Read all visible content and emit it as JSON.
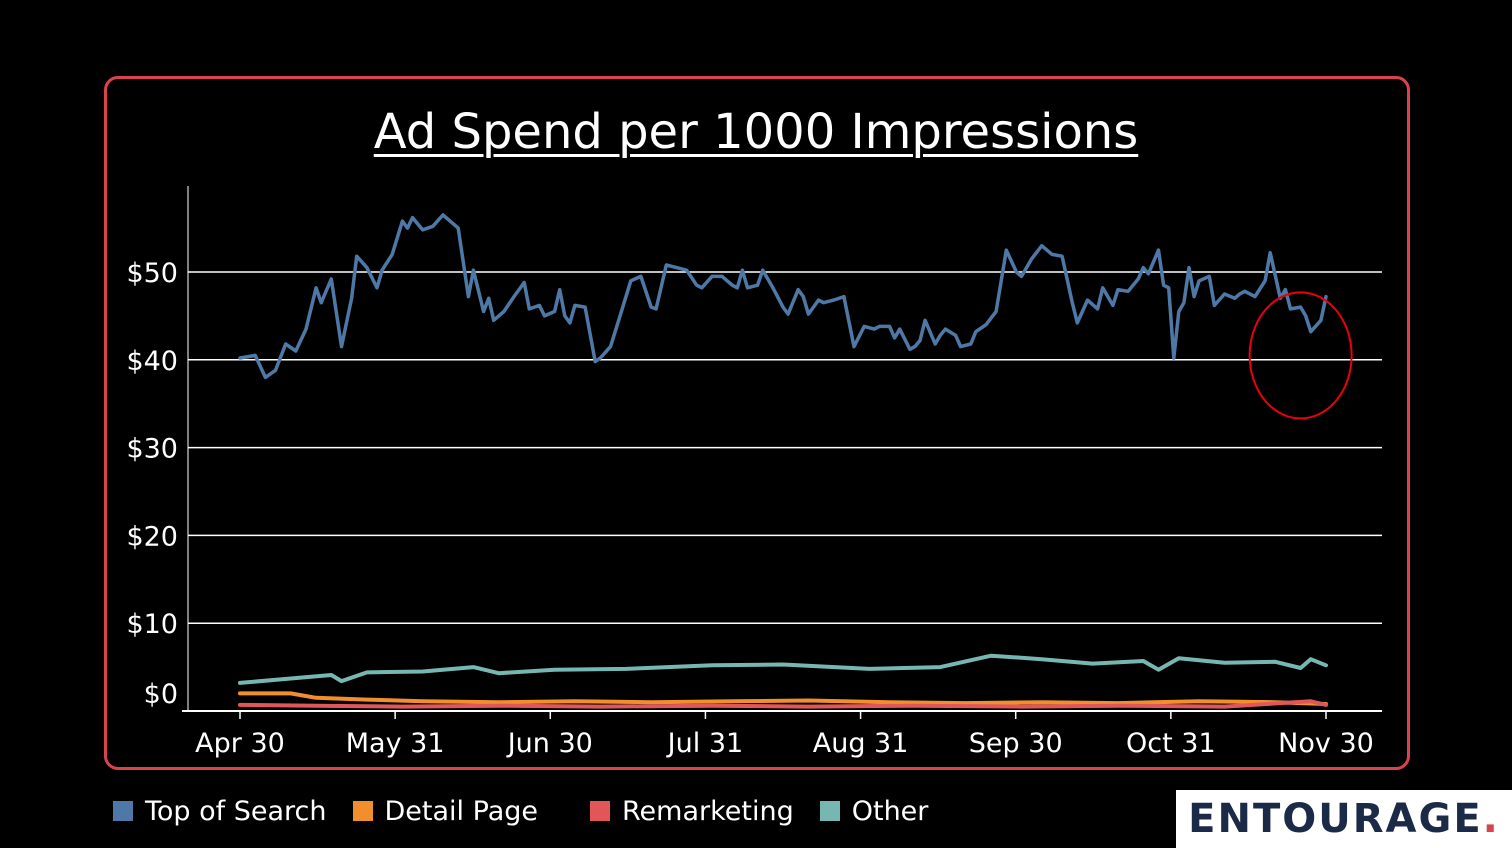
{
  "chart_data": {
    "type": "line",
    "title": "Ad Spend per 1000 Impressions",
    "xlabel": "",
    "ylabel": "",
    "x_tick_labels": [
      "Apr 30",
      "May 31",
      "Jun 30",
      "Jul 31",
      "Aug 31",
      "Sep 30",
      "Oct 31",
      "Nov 30"
    ],
    "y_tick_labels": [
      "$0",
      "$10",
      "$20",
      "$30",
      "$40",
      "$50"
    ],
    "y_ticks": [
      0,
      10,
      20,
      30,
      40,
      50
    ],
    "ylim": [
      0,
      60
    ],
    "x_range": [
      "2024-04-30",
      "2024-11-30"
    ],
    "grid": true,
    "legend_position": "bottom-left",
    "series": [
      {
        "name": "Top of Search",
        "color": "#4e79a7",
        "points": [
          [
            "2024-04-30",
            40.2
          ],
          [
            "2024-05-03",
            40.5
          ],
          [
            "2024-05-05",
            38.0
          ],
          [
            "2024-05-07",
            38.8
          ],
          [
            "2024-05-09",
            41.8
          ],
          [
            "2024-05-11",
            41.0
          ],
          [
            "2024-05-13",
            43.5
          ],
          [
            "2024-05-15",
            48.2
          ],
          [
            "2024-05-16",
            46.5
          ],
          [
            "2024-05-18",
            49.2
          ],
          [
            "2024-05-20",
            41.5
          ],
          [
            "2024-05-22",
            47.0
          ],
          [
            "2024-05-23",
            51.8
          ],
          [
            "2024-05-25",
            50.5
          ],
          [
            "2024-05-27",
            48.2
          ],
          [
            "2024-05-28",
            50.2
          ],
          [
            "2024-05-30",
            52.0
          ],
          [
            "2024-06-01",
            55.8
          ],
          [
            "2024-06-02",
            55.0
          ],
          [
            "2024-06-03",
            56.2
          ],
          [
            "2024-06-05",
            54.8
          ],
          [
            "2024-06-07",
            55.2
          ],
          [
            "2024-06-09",
            56.5
          ],
          [
            "2024-06-12",
            55.0
          ],
          [
            "2024-06-14",
            47.2
          ],
          [
            "2024-06-15",
            50.2
          ],
          [
            "2024-06-17",
            45.5
          ],
          [
            "2024-06-18",
            47.0
          ],
          [
            "2024-06-19",
            44.5
          ],
          [
            "2024-06-21",
            45.5
          ],
          [
            "2024-06-23",
            47.2
          ],
          [
            "2024-06-25",
            48.8
          ],
          [
            "2024-06-26",
            45.8
          ],
          [
            "2024-06-28",
            46.2
          ],
          [
            "2024-06-29",
            45.0
          ],
          [
            "2024-07-01",
            45.5
          ],
          [
            "2024-07-02",
            48.0
          ],
          [
            "2024-07-03",
            45.0
          ],
          [
            "2024-07-04",
            44.2
          ],
          [
            "2024-07-05",
            46.2
          ],
          [
            "2024-07-07",
            46.0
          ],
          [
            "2024-07-09",
            39.8
          ],
          [
            "2024-07-10",
            40.2
          ],
          [
            "2024-07-12",
            41.5
          ],
          [
            "2024-07-14",
            45.2
          ],
          [
            "2024-07-16",
            49.0
          ],
          [
            "2024-07-18",
            49.5
          ],
          [
            "2024-07-20",
            46.0
          ],
          [
            "2024-07-21",
            45.8
          ],
          [
            "2024-07-23",
            50.8
          ],
          [
            "2024-07-25",
            50.5
          ],
          [
            "2024-07-27",
            50.2
          ],
          [
            "2024-07-29",
            48.5
          ],
          [
            "2024-07-30",
            48.2
          ],
          [
            "2024-08-01",
            49.5
          ],
          [
            "2024-08-03",
            49.5
          ],
          [
            "2024-08-05",
            48.5
          ],
          [
            "2024-08-06",
            48.2
          ],
          [
            "2024-08-07",
            50.2
          ],
          [
            "2024-08-08",
            48.2
          ],
          [
            "2024-08-10",
            48.5
          ],
          [
            "2024-08-11",
            50.2
          ],
          [
            "2024-08-13",
            48.2
          ],
          [
            "2024-08-15",
            46.0
          ],
          [
            "2024-08-16",
            45.2
          ],
          [
            "2024-08-18",
            48.0
          ],
          [
            "2024-08-19",
            47.2
          ],
          [
            "2024-08-20",
            45.2
          ],
          [
            "2024-08-22",
            46.8
          ],
          [
            "2024-08-23",
            46.5
          ],
          [
            "2024-08-25",
            46.8
          ],
          [
            "2024-08-27",
            47.2
          ],
          [
            "2024-08-29",
            41.5
          ],
          [
            "2024-08-31",
            43.8
          ],
          [
            "2024-09-02",
            43.5
          ],
          [
            "2024-09-03",
            43.8
          ],
          [
            "2024-09-05",
            43.8
          ],
          [
            "2024-09-06",
            42.5
          ],
          [
            "2024-09-07",
            43.5
          ],
          [
            "2024-09-09",
            41.2
          ],
          [
            "2024-09-10",
            41.5
          ],
          [
            "2024-09-11",
            42.2
          ],
          [
            "2024-09-12",
            44.5
          ],
          [
            "2024-09-14",
            41.8
          ],
          [
            "2024-09-15",
            42.8
          ],
          [
            "2024-09-16",
            43.5
          ],
          [
            "2024-09-18",
            42.8
          ],
          [
            "2024-09-19",
            41.5
          ],
          [
            "2024-09-21",
            41.8
          ],
          [
            "2024-09-22",
            43.2
          ],
          [
            "2024-09-24",
            44.0
          ],
          [
            "2024-09-26",
            45.5
          ],
          [
            "2024-09-28",
            52.5
          ],
          [
            "2024-09-30",
            50.0
          ],
          [
            "2024-10-01",
            49.5
          ],
          [
            "2024-10-03",
            51.5
          ],
          [
            "2024-10-05",
            53.0
          ],
          [
            "2024-10-07",
            52.0
          ],
          [
            "2024-10-09",
            51.8
          ],
          [
            "2024-10-11",
            46.5
          ],
          [
            "2024-10-12",
            44.2
          ],
          [
            "2024-10-14",
            46.8
          ],
          [
            "2024-10-16",
            45.8
          ],
          [
            "2024-10-17",
            48.2
          ],
          [
            "2024-10-19",
            46.2
          ],
          [
            "2024-10-20",
            48.0
          ],
          [
            "2024-10-22",
            47.8
          ],
          [
            "2024-10-24",
            49.2
          ],
          [
            "2024-10-25",
            50.5
          ],
          [
            "2024-10-26",
            49.8
          ],
          [
            "2024-10-28",
            52.5
          ],
          [
            "2024-10-29",
            48.5
          ],
          [
            "2024-10-30",
            48.2
          ],
          [
            "2024-10-31",
            40.2
          ],
          [
            "2024-11-01",
            45.5
          ],
          [
            "2024-11-02",
            46.5
          ],
          [
            "2024-11-03",
            50.5
          ],
          [
            "2024-11-04",
            47.2
          ],
          [
            "2024-11-05",
            49.0
          ],
          [
            "2024-11-07",
            49.5
          ],
          [
            "2024-11-08",
            46.2
          ],
          [
            "2024-11-10",
            47.5
          ],
          [
            "2024-11-12",
            47.0
          ],
          [
            "2024-11-13",
            47.5
          ],
          [
            "2024-11-14",
            47.8
          ],
          [
            "2024-11-16",
            47.2
          ],
          [
            "2024-11-18",
            49.0
          ],
          [
            "2024-11-19",
            52.2
          ],
          [
            "2024-11-21",
            47.0
          ],
          [
            "2024-11-22",
            48.0
          ],
          [
            "2024-11-23",
            45.8
          ],
          [
            "2024-11-25",
            46.0
          ],
          [
            "2024-11-26",
            45.0
          ],
          [
            "2024-11-27",
            43.2
          ],
          [
            "2024-11-29",
            44.5
          ],
          [
            "2024-11-30",
            47.2
          ]
        ]
      },
      {
        "name": "Detail Page",
        "color": "#f28e2b",
        "points": [
          [
            "2024-04-30",
            2.0
          ],
          [
            "2024-05-10",
            2.0
          ],
          [
            "2024-05-15",
            1.5
          ],
          [
            "2024-05-25",
            1.3
          ],
          [
            "2024-06-05",
            1.1
          ],
          [
            "2024-06-20",
            1.0
          ],
          [
            "2024-07-05",
            1.1
          ],
          [
            "2024-07-20",
            1.0
          ],
          [
            "2024-08-05",
            1.1
          ],
          [
            "2024-08-20",
            1.2
          ],
          [
            "2024-09-05",
            1.0
          ],
          [
            "2024-09-20",
            0.9
          ],
          [
            "2024-10-05",
            1.0
          ],
          [
            "2024-10-20",
            0.9
          ],
          [
            "2024-11-05",
            1.1
          ],
          [
            "2024-11-20",
            1.0
          ],
          [
            "2024-11-30",
            0.8
          ]
        ]
      },
      {
        "name": "Remarketing",
        "color": "#e15759",
        "points": [
          [
            "2024-04-30",
            0.7
          ],
          [
            "2024-05-15",
            0.6
          ],
          [
            "2024-06-01",
            0.5
          ],
          [
            "2024-06-20",
            0.6
          ],
          [
            "2024-07-10",
            0.5
          ],
          [
            "2024-08-01",
            0.6
          ],
          [
            "2024-08-20",
            0.5
          ],
          [
            "2024-09-10",
            0.6
          ],
          [
            "2024-10-01",
            0.5
          ],
          [
            "2024-10-20",
            0.6
          ],
          [
            "2024-11-10",
            0.5
          ],
          [
            "2024-11-27",
            1.1
          ],
          [
            "2024-11-30",
            0.7
          ]
        ]
      },
      {
        "name": "Other",
        "color": "#76b7b2",
        "points": [
          [
            "2024-04-30",
            3.2
          ],
          [
            "2024-05-08",
            3.6
          ],
          [
            "2024-05-18",
            4.1
          ],
          [
            "2024-05-20",
            3.4
          ],
          [
            "2024-05-25",
            4.4
          ],
          [
            "2024-06-05",
            4.5
          ],
          [
            "2024-06-15",
            5.0
          ],
          [
            "2024-06-20",
            4.3
          ],
          [
            "2024-07-01",
            4.7
          ],
          [
            "2024-07-15",
            4.8
          ],
          [
            "2024-08-01",
            5.2
          ],
          [
            "2024-08-15",
            5.3
          ],
          [
            "2024-09-01",
            4.8
          ],
          [
            "2024-09-15",
            5.0
          ],
          [
            "2024-09-25",
            6.3
          ],
          [
            "2024-10-05",
            5.9
          ],
          [
            "2024-10-15",
            5.4
          ],
          [
            "2024-10-25",
            5.7
          ],
          [
            "2024-10-28",
            4.7
          ],
          [
            "2024-11-01",
            6.0
          ],
          [
            "2024-11-10",
            5.5
          ],
          [
            "2024-11-20",
            5.6
          ],
          [
            "2024-11-25",
            4.9
          ],
          [
            "2024-11-27",
            5.9
          ],
          [
            "2024-11-30",
            5.2
          ]
        ]
      }
    ]
  },
  "legend": [
    {
      "label": "Top of Search",
      "color": "#4e79a7"
    },
    {
      "label": "Detail Page",
      "color": "#f28e2b"
    },
    {
      "label": "Remarketing",
      "color": "#e15759"
    },
    {
      "label": "Other",
      "color": "#76b7b2"
    }
  ],
  "logo": {
    "text": "ENTOURAGE",
    "dot": "."
  },
  "annotation": {
    "type": "circle",
    "color": "#e8000f",
    "center": [
      "2024-11-25",
      40.5
    ]
  }
}
